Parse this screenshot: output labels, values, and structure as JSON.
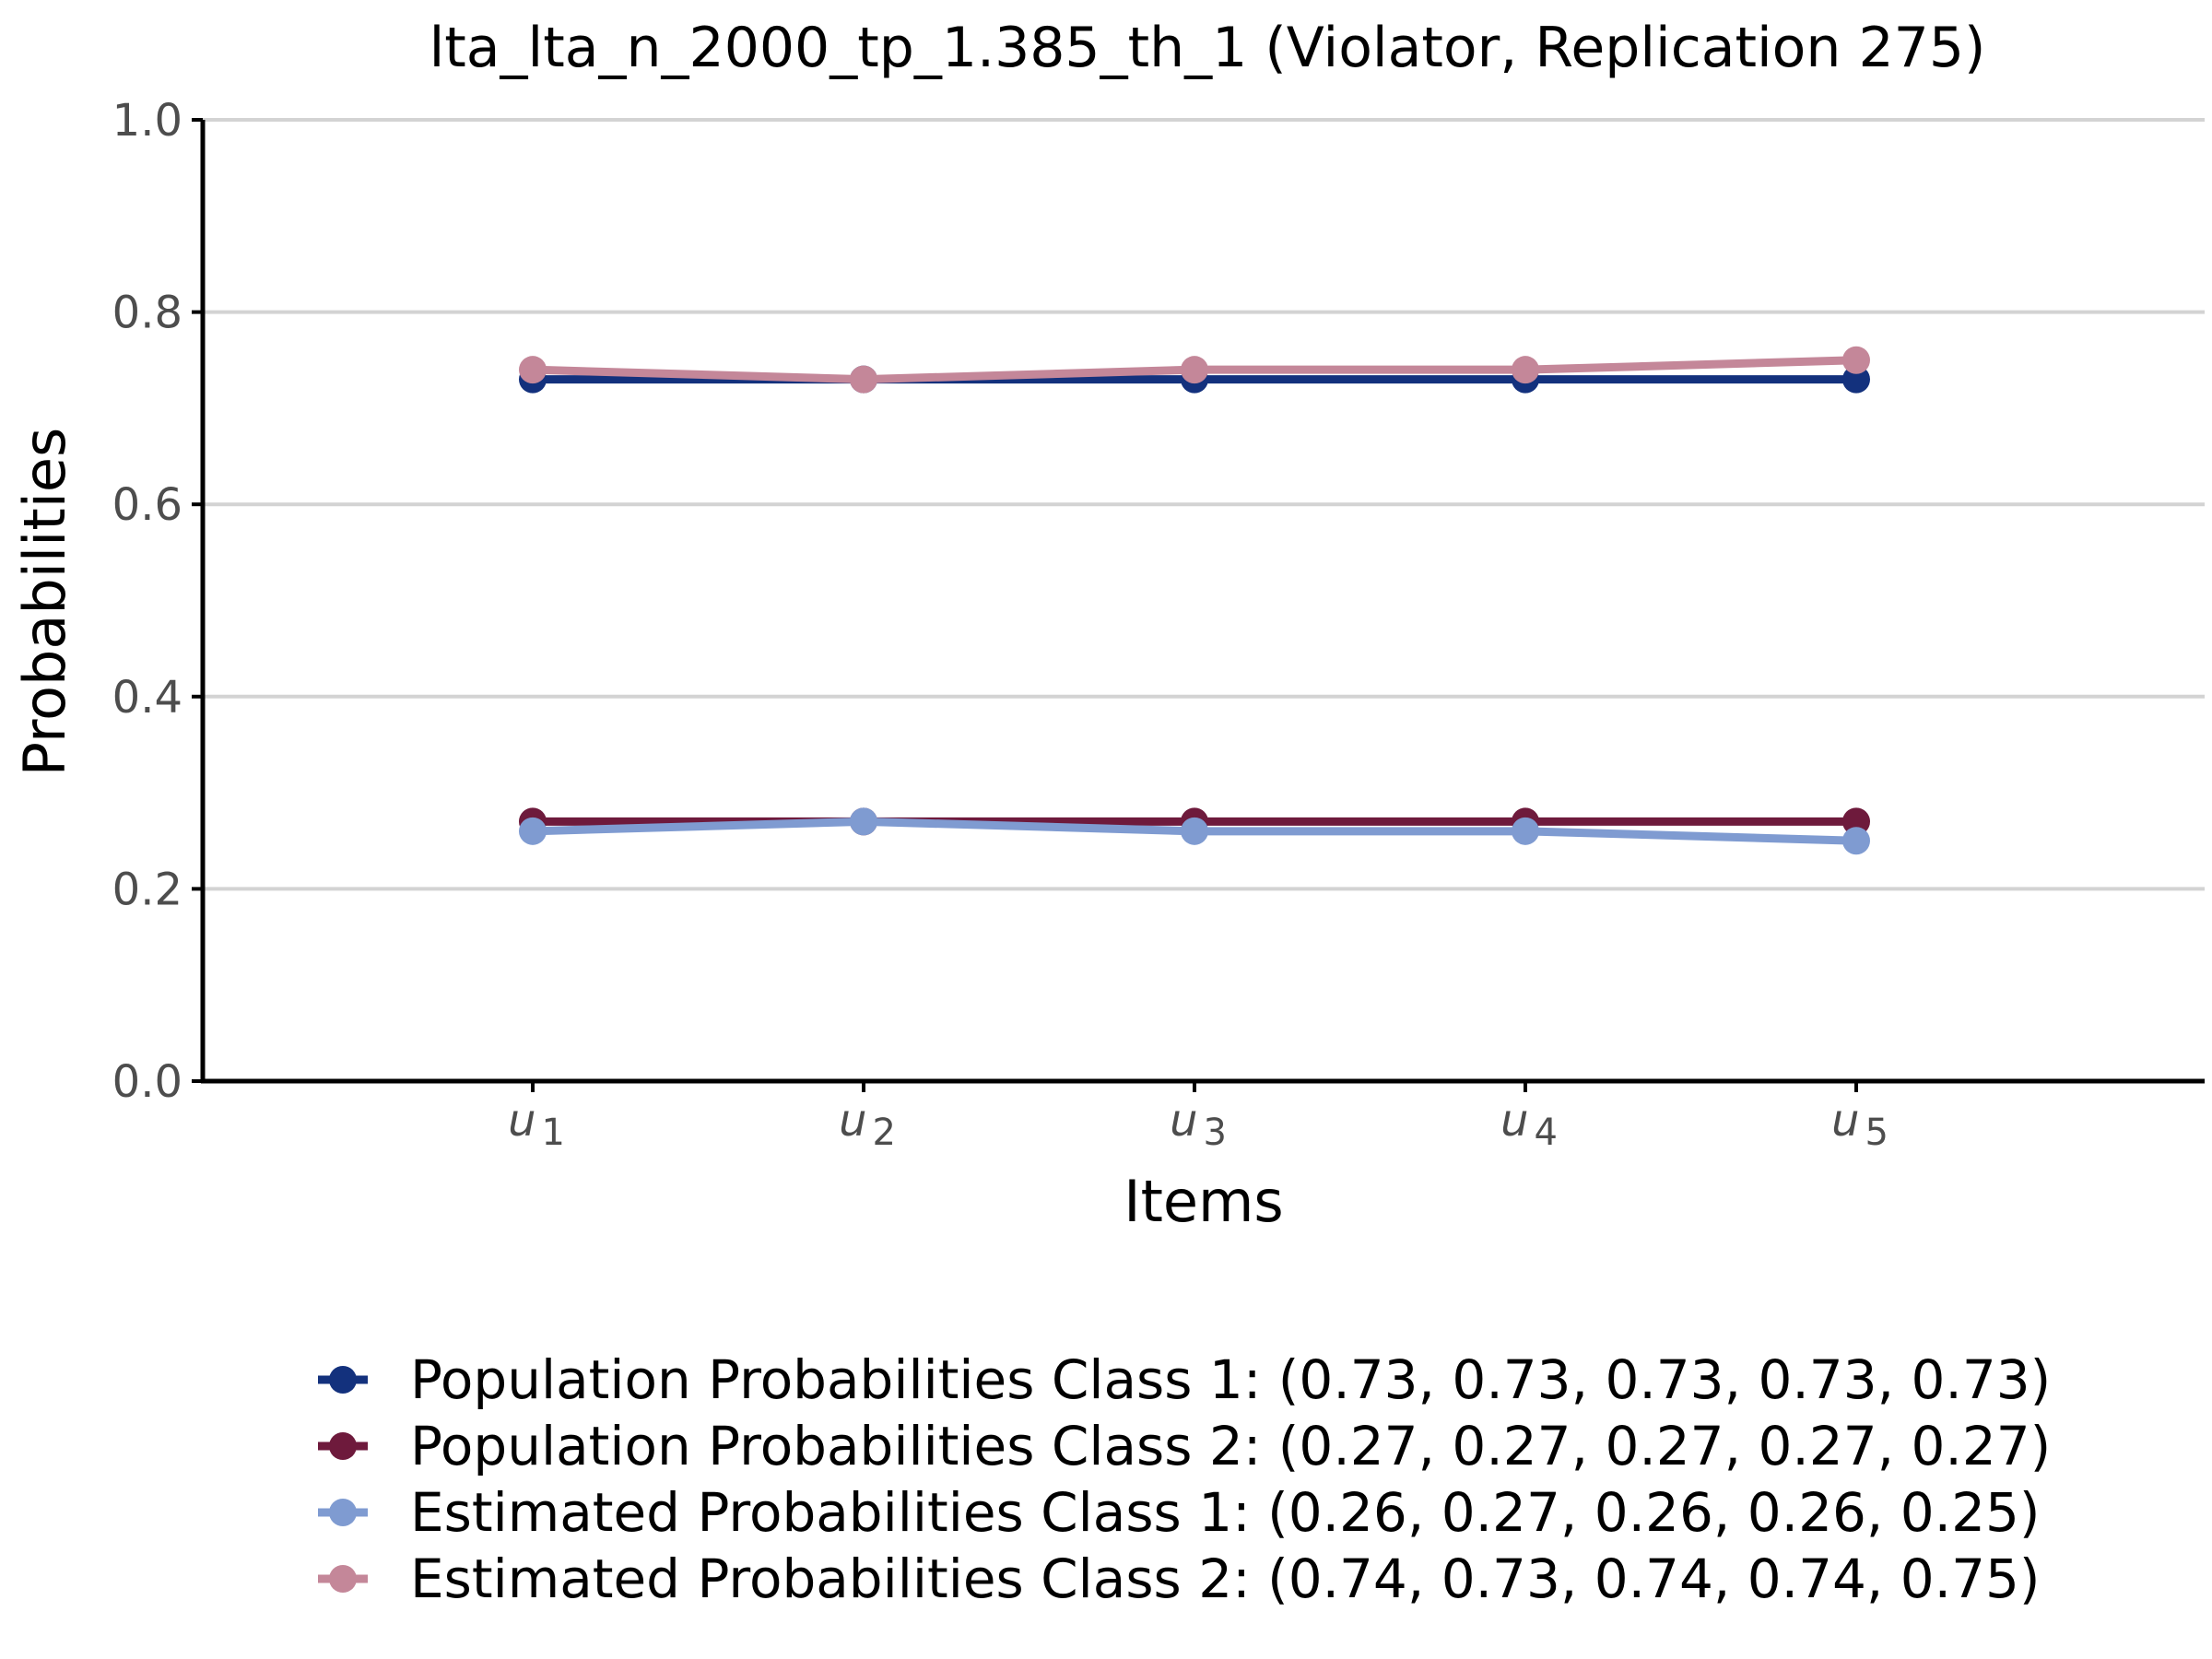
{
  "chart_data": {
    "type": "line",
    "title": "lta_lta_n_2000_tp_1.385_th_1 (Violator, Replication 275)",
    "xlabel": "Items",
    "ylabel": "Probabilities",
    "categories": [
      "u1",
      "u2",
      "u3",
      "u4",
      "u5"
    ],
    "category_labels": [
      {
        "base": "u",
        "sub": "1"
      },
      {
        "base": "u",
        "sub": "2"
      },
      {
        "base": "u",
        "sub": "3"
      },
      {
        "base": "u",
        "sub": "4"
      },
      {
        "base": "u",
        "sub": "5"
      }
    ],
    "ylim": [
      0,
      1
    ],
    "yticks": [
      "0.0",
      "0.2",
      "0.4",
      "0.6",
      "0.8",
      "1.0"
    ],
    "grid": "horizontal",
    "legend_position": "bottom",
    "series": [
      {
        "name": "Population Probabilities Class 1: (0.73, 0.73, 0.73, 0.73, 0.73)",
        "color": "#13317d",
        "values": [
          0.73,
          0.73,
          0.73,
          0.73,
          0.73
        ]
      },
      {
        "name": "Population Probabilities Class 2: (0.27, 0.27, 0.27, 0.27, 0.27)",
        "color": "#6e1a3c",
        "values": [
          0.27,
          0.27,
          0.27,
          0.27,
          0.27
        ]
      },
      {
        "name": "Estimated Probabilities Class 1: (0.26, 0.27, 0.26, 0.26, 0.25)",
        "color": "#7f9bd1",
        "values": [
          0.26,
          0.27,
          0.26,
          0.26,
          0.25
        ]
      },
      {
        "name": "Estimated Probabilities Class 2: (0.74, 0.73, 0.74, 0.74, 0.75)",
        "color": "#c48799",
        "values": [
          0.74,
          0.73,
          0.74,
          0.74,
          0.75
        ]
      }
    ]
  }
}
